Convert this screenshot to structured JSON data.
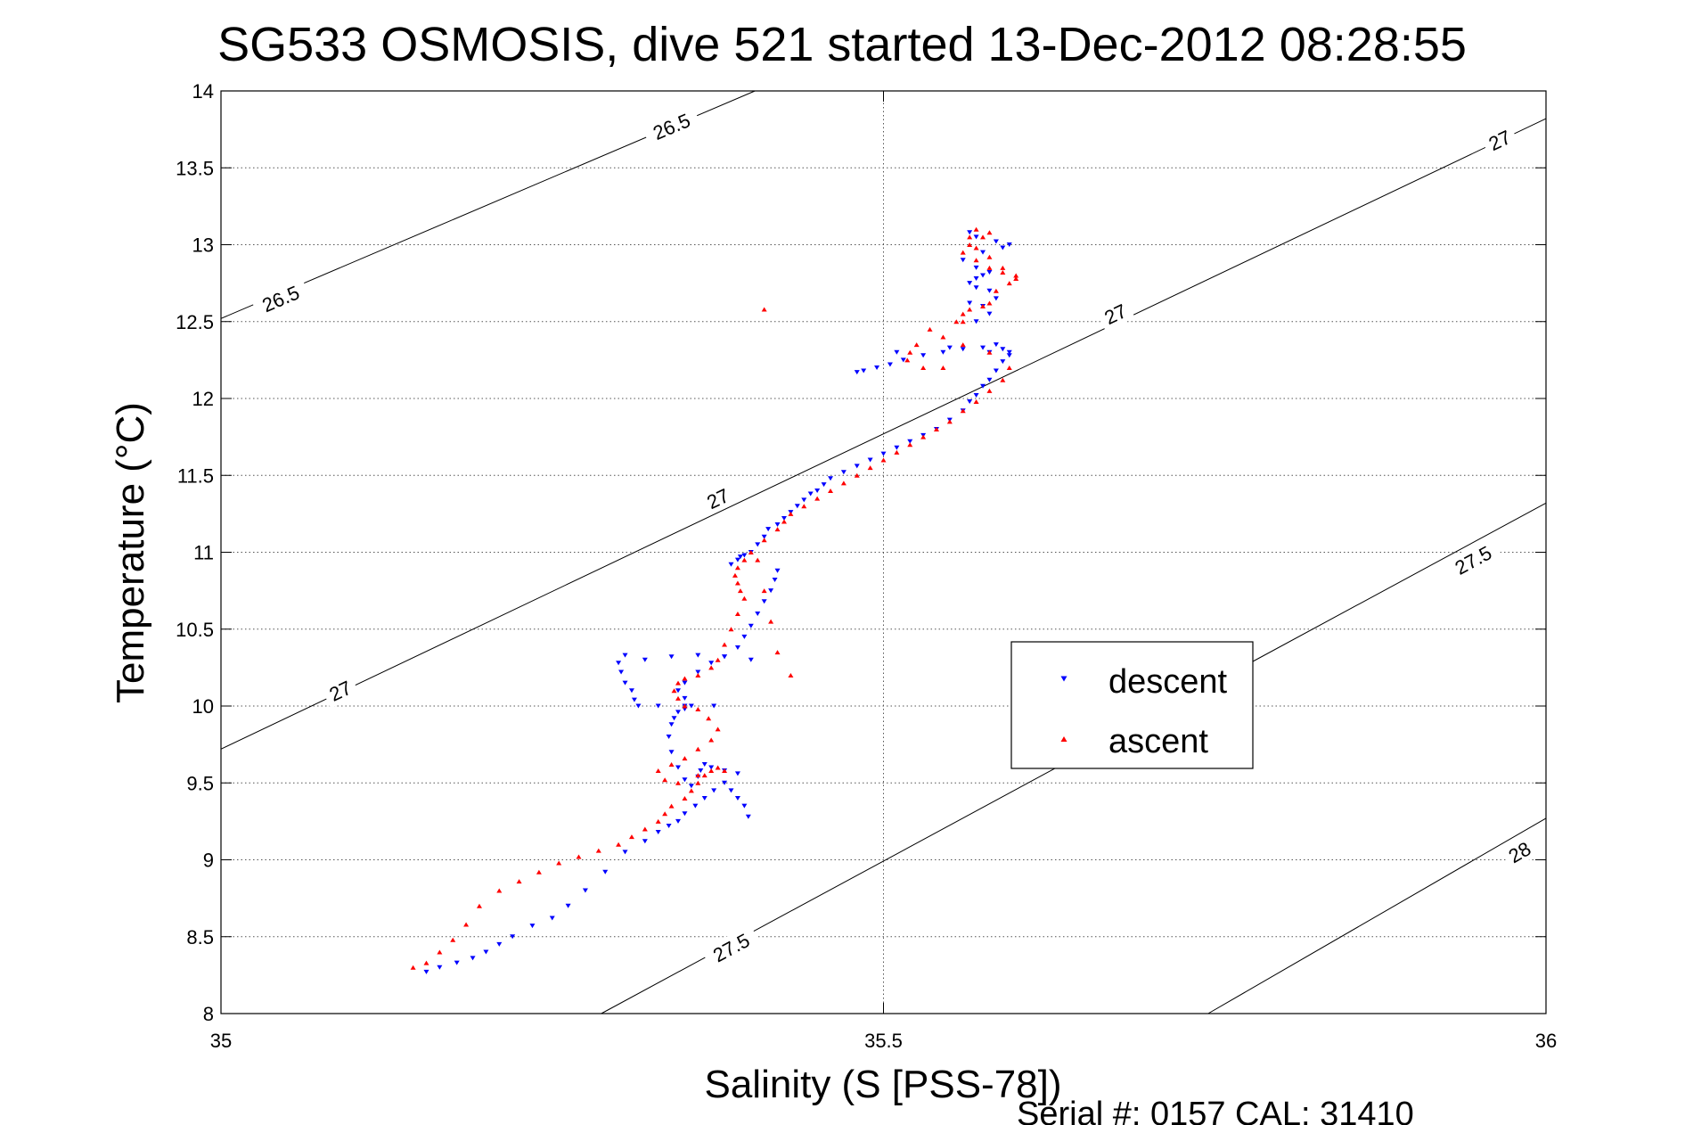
{
  "chart_data": {
    "type": "scatter",
    "title": "SG533 OSMOSIS, dive 521 started 13-Dec-2012 08:28:55",
    "xlabel": "Salinity (S [PSS-78])",
    "ylabel": "Temperature (°C)",
    "xlim": [
      35,
      36
    ],
    "ylim": [
      8,
      14
    ],
    "xticks": [
      35,
      35.5,
      36
    ],
    "xtick_labels": [
      "35",
      "35.5",
      "36"
    ],
    "yticks": [
      8,
      8.5,
      9,
      9.5,
      10,
      10.5,
      11,
      11.5,
      12,
      12.5,
      13,
      13.5,
      14
    ],
    "ytick_labels": [
      "8",
      "8.5",
      "9",
      "9.5",
      "10",
      "10.5",
      "11",
      "11.5",
      "12",
      "12.5",
      "13",
      "13.5",
      "14"
    ],
    "grid": true,
    "legend_position": "center-right",
    "footer": "Serial #: 0157  CAL: 31410",
    "density_contours": [
      {
        "label": "26.5",
        "line": [
          [
            35.0,
            12.52
          ],
          [
            35.403,
            14.0
          ]
        ],
        "label_points": [
          [
            35.045,
            12.65
          ],
          [
            35.34,
            13.77
          ]
        ]
      },
      {
        "label": "27",
        "line": [
          [
            35.0,
            9.72
          ],
          [
            36.0,
            13.82
          ]
        ],
        "label_points": [
          [
            35.09,
            10.1
          ],
          [
            35.375,
            11.35
          ],
          [
            35.675,
            12.55
          ],
          [
            35.965,
            13.68
          ]
        ]
      },
      {
        "label": "27.5",
        "line": [
          [
            35.287,
            8.0
          ],
          [
            36.0,
            11.32
          ]
        ],
        "label_points": [
          [
            35.385,
            8.43
          ],
          [
            35.945,
            10.95
          ]
        ]
      },
      {
        "label": "28",
        "line": [
          [
            35.745,
            8.0
          ],
          [
            36.0,
            9.27
          ]
        ],
        "label_points": [
          [
            35.98,
            9.05
          ]
        ]
      }
    ],
    "series": [
      {
        "name": "descent",
        "color": "#0000ff",
        "marker": "triangle-down",
        "x": [
          35.155,
          35.165,
          35.178,
          35.19,
          35.2,
          35.21,
          35.22,
          35.235,
          35.25,
          35.262,
          35.275,
          35.29,
          35.305,
          35.32,
          35.33,
          35.338,
          35.345,
          35.35,
          35.358,
          35.365,
          35.372,
          35.38,
          35.385,
          35.39,
          35.395,
          35.398,
          35.39,
          35.38,
          35.37,
          35.365,
          35.362,
          35.36,
          35.355,
          35.35,
          35.345,
          35.34,
          35.338,
          35.34,
          35.342,
          35.345,
          35.35,
          35.355,
          35.35,
          35.345,
          35.35,
          35.36,
          35.37,
          35.38,
          35.39,
          35.395,
          35.4,
          35.405,
          35.41,
          35.415,
          35.418,
          35.42,
          35.4,
          35.38,
          35.36,
          35.34,
          35.32,
          35.305,
          35.3,
          35.302,
          35.305,
          35.31,
          35.312,
          35.315,
          35.33,
          35.35,
          35.372,
          35.385,
          35.39,
          35.392,
          35.395,
          35.4,
          35.405,
          35.41,
          35.413,
          35.42,
          35.425,
          35.43,
          35.435,
          35.44,
          35.445,
          35.45,
          35.455,
          35.46,
          35.47,
          35.48,
          35.49,
          35.5,
          35.51,
          35.52,
          35.53,
          35.54,
          35.55,
          35.56,
          35.565,
          35.57,
          35.575,
          35.58,
          35.585,
          35.59,
          35.595,
          35.58,
          35.56,
          35.545,
          35.53,
          35.515,
          35.505,
          35.495,
          35.485,
          35.48,
          35.51,
          35.55,
          35.575,
          35.585,
          35.59,
          35.595,
          35.58,
          35.57,
          35.565,
          35.57,
          35.575,
          35.58,
          35.57,
          35.56,
          35.575,
          35.59,
          35.595,
          35.585,
          35.57,
          35.565,
          35.565,
          35.575,
          35.585,
          35.58,
          35.57
        ],
        "y": [
          8.27,
          8.3,
          8.33,
          8.36,
          8.4,
          8.45,
          8.5,
          8.57,
          8.62,
          8.7,
          8.8,
          8.92,
          9.05,
          9.12,
          9.18,
          9.22,
          9.25,
          9.3,
          9.35,
          9.4,
          9.45,
          9.5,
          9.45,
          9.4,
          9.35,
          9.28,
          9.56,
          9.58,
          9.6,
          9.62,
          9.58,
          9.54,
          9.48,
          9.52,
          9.6,
          9.7,
          9.8,
          9.88,
          9.92,
          9.96,
          9.98,
          10.0,
          10.05,
          10.1,
          10.15,
          10.22,
          10.28,
          10.32,
          10.38,
          10.45,
          10.52,
          10.6,
          10.68,
          10.75,
          10.82,
          10.88,
          10.3,
          10.32,
          10.33,
          10.32,
          10.3,
          10.33,
          10.28,
          10.22,
          10.15,
          10.1,
          10.04,
          10.0,
          10.0,
          10.0,
          10.0,
          10.92,
          10.95,
          10.97,
          10.98,
          11.0,
          11.05,
          11.1,
          11.15,
          11.18,
          11.22,
          11.26,
          11.3,
          11.34,
          11.38,
          11.4,
          11.44,
          11.48,
          11.52,
          11.56,
          11.6,
          11.64,
          11.68,
          11.72,
          11.76,
          11.8,
          11.86,
          11.92,
          11.98,
          12.02,
          12.08,
          12.12,
          12.18,
          12.24,
          12.28,
          12.3,
          12.32,
          12.3,
          12.28,
          12.25,
          12.22,
          12.2,
          12.18,
          12.17,
          12.3,
          12.33,
          12.33,
          12.35,
          12.32,
          12.3,
          12.7,
          12.72,
          12.75,
          12.78,
          12.8,
          12.82,
          12.85,
          12.9,
          12.95,
          12.98,
          13.0,
          13.02,
          13.05,
          13.08,
          12.62,
          12.6,
          12.65,
          12.55,
          12.5
        ]
      },
      {
        "name": "ascent",
        "color": "#ff0000",
        "marker": "triangle-up",
        "x": [
          35.145,
          35.155,
          35.165,
          35.175,
          35.185,
          35.195,
          35.21,
          35.225,
          35.24,
          35.255,
          35.27,
          35.285,
          35.3,
          35.31,
          35.32,
          35.33,
          35.335,
          35.34,
          35.35,
          35.355,
          35.36,
          35.365,
          35.37,
          35.375,
          35.38,
          35.36,
          35.345,
          35.335,
          35.33,
          35.34,
          35.35,
          35.36,
          35.37,
          35.375,
          35.368,
          35.36,
          35.35,
          35.345,
          35.342,
          35.345,
          35.35,
          35.36,
          35.37,
          35.375,
          35.38,
          35.385,
          35.39,
          35.395,
          35.392,
          35.39,
          35.388,
          35.39,
          35.395,
          35.4,
          35.41,
          35.42,
          35.425,
          35.43,
          35.44,
          35.45,
          35.46,
          35.47,
          35.48,
          35.49,
          35.5,
          35.51,
          35.52,
          35.53,
          35.54,
          35.55,
          35.56,
          35.57,
          35.58,
          35.59,
          35.595,
          35.58,
          35.56,
          35.545,
          35.535,
          35.525,
          35.52,
          35.518,
          35.53,
          35.545,
          35.56,
          35.575,
          35.585,
          35.595,
          35.6,
          35.59,
          35.58,
          35.57,
          35.56,
          35.565,
          35.575,
          35.58,
          35.57,
          35.565,
          35.57,
          35.58,
          35.59,
          35.6,
          35.58,
          35.565,
          35.56,
          35.555,
          35.43,
          35.42,
          35.415,
          35.41,
          35.405,
          35.41
        ],
        "y": [
          8.3,
          8.33,
          8.4,
          8.48,
          8.58,
          8.7,
          8.8,
          8.86,
          8.92,
          8.98,
          9.02,
          9.06,
          9.1,
          9.15,
          9.2,
          9.25,
          9.3,
          9.35,
          9.4,
          9.45,
          9.5,
          9.55,
          9.58,
          9.6,
          9.58,
          9.55,
          9.5,
          9.52,
          9.58,
          9.62,
          9.66,
          9.72,
          9.78,
          9.85,
          9.92,
          9.98,
          10.0,
          10.05,
          10.1,
          10.15,
          10.18,
          10.2,
          10.25,
          10.3,
          10.4,
          10.5,
          10.6,
          10.7,
          10.75,
          10.8,
          10.85,
          10.9,
          10.95,
          11.0,
          11.08,
          11.15,
          11.2,
          11.25,
          11.3,
          11.35,
          11.4,
          11.45,
          11.5,
          11.55,
          11.6,
          11.65,
          11.7,
          11.75,
          11.8,
          11.85,
          11.92,
          11.98,
          12.05,
          12.12,
          12.2,
          12.3,
          12.35,
          12.4,
          12.45,
          12.35,
          12.3,
          12.25,
          12.2,
          12.2,
          12.5,
          12.6,
          12.7,
          12.75,
          12.8,
          12.82,
          12.85,
          12.9,
          12.95,
          13.0,
          13.05,
          13.08,
          13.1,
          13.05,
          12.98,
          12.92,
          12.85,
          12.78,
          12.62,
          12.58,
          12.55,
          12.5,
          10.2,
          10.35,
          10.55,
          10.75,
          10.95,
          12.58
        ]
      }
    ]
  }
}
